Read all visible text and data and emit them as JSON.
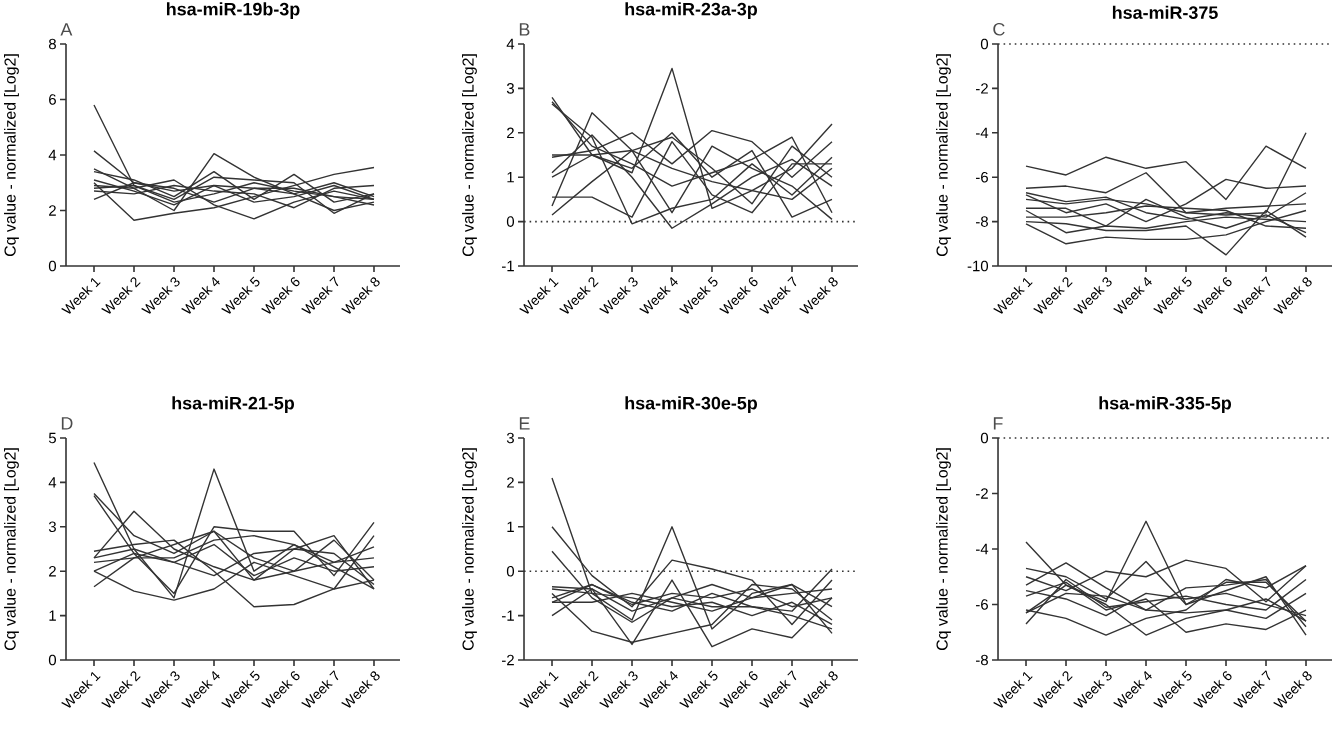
{
  "chart_data": [
    {
      "type": "line",
      "title": "hsa-miR-19b-3p",
      "annotations": [
        "A"
      ],
      "ylabel": "Cq value - normalized [Log2]",
      "categories": [
        "Week 1",
        "Week 2",
        "Week 3",
        "Week 4",
        "Week 5",
        "Week 6",
        "Week 7",
        "Week 8"
      ],
      "ylim": [
        0,
        8
      ],
      "yticks": [
        0,
        2,
        4,
        6,
        8
      ],
      "series": [
        {
          "color": "#333333",
          "values": [
            5.8,
            2.9,
            2.3,
            2.6,
            3.0,
            2.7,
            2.5,
            2.4
          ]
        },
        {
          "color": "#333333",
          "values": [
            4.15,
            3.0,
            2.7,
            2.9,
            2.8,
            2.6,
            3.0,
            2.5
          ]
        },
        {
          "color": "#333333",
          "values": [
            3.5,
            2.8,
            2.0,
            4.05,
            3.2,
            2.6,
            2.0,
            2.3
          ]
        },
        {
          "color": "#333333",
          "values": [
            3.4,
            3.1,
            2.5,
            3.4,
            2.4,
            3.3,
            2.3,
            2.6
          ]
        },
        {
          "color": "#333333",
          "values": [
            3.0,
            1.65,
            1.9,
            2.1,
            2.5,
            2.9,
            3.3,
            3.55
          ]
        },
        {
          "color": "#333333",
          "values": [
            2.9,
            2.8,
            3.1,
            2.2,
            1.7,
            2.3,
            2.7,
            2.4
          ]
        },
        {
          "color": "#333333",
          "values": [
            2.8,
            2.9,
            2.4,
            3.2,
            3.1,
            3.0,
            1.9,
            2.6
          ]
        },
        {
          "color": "#333333",
          "values": [
            2.7,
            2.6,
            2.9,
            2.7,
            2.6,
            2.1,
            2.8,
            2.9
          ]
        },
        {
          "color": "#333333",
          "values": [
            2.4,
            3.0,
            2.8,
            2.3,
            2.8,
            2.8,
            2.5,
            2.2
          ]
        },
        {
          "color": "#333333",
          "values": [
            3.1,
            2.7,
            2.2,
            2.9,
            2.3,
            2.5,
            2.9,
            2.4
          ]
        }
      ]
    },
    {
      "type": "line",
      "title": "hsa-miR-23a-3p",
      "annotations": [
        "B"
      ],
      "ylabel": "Cq value - normalized [Log2]",
      "categories": [
        "Week 1",
        "Week 2",
        "Week 3",
        "Week 4",
        "Week 5",
        "Week 6",
        "Week 7",
        "Week 8"
      ],
      "ylim": [
        -1,
        4
      ],
      "yticks": [
        -1,
        0,
        1,
        2,
        3,
        4
      ],
      "ref_lines": [
        {
          "axis": "y",
          "value": 0,
          "color": "#333333",
          "line_style": "dotted"
        }
      ],
      "series": [
        {
          "color": "#333333",
          "values": [
            2.8,
            1.5,
            1.1,
            3.45,
            0.3,
            0.7,
            1.2,
            2.2
          ]
        },
        {
          "color": "#333333",
          "values": [
            2.7,
            1.7,
            1.3,
            0.8,
            1.1,
            1.4,
            1.9,
            0.2
          ]
        },
        {
          "color": "#333333",
          "values": [
            2.65,
            1.9,
            -0.05,
            0.3,
            0.5,
            1.3,
            0.6,
            1.45
          ]
        },
        {
          "color": "#333333",
          "values": [
            1.45,
            1.6,
            2.0,
            1.3,
            2.05,
            1.8,
            1.0,
            1.8
          ]
        },
        {
          "color": "#333333",
          "values": [
            1.1,
            1.95,
            1.0,
            -0.15,
            0.4,
            1.0,
            1.4,
            0.8
          ]
        },
        {
          "color": "#333333",
          "values": [
            1.0,
            1.5,
            1.2,
            2.0,
            1.0,
            1.6,
            0.1,
            0.5
          ]
        },
        {
          "color": "#333333",
          "values": [
            0.55,
            0.55,
            0.1,
            1.8,
            0.6,
            0.2,
            1.3,
            1.3
          ]
        },
        {
          "color": "#333333",
          "values": [
            0.35,
            2.45,
            1.6,
            0.2,
            1.7,
            1.2,
            0.8,
            0.05
          ]
        },
        {
          "color": "#333333",
          "values": [
            0.15,
            0.9,
            1.6,
            1.9,
            1.2,
            0.4,
            1.7,
            1.0
          ]
        },
        {
          "color": "#333333",
          "values": [
            1.5,
            1.5,
            1.6,
            1.2,
            0.9,
            0.7,
            0.5,
            1.2
          ]
        }
      ]
    },
    {
      "type": "line",
      "title": "hsa-miR-375",
      "annotations": [
        "C"
      ],
      "ylabel": "Cq value - normalized [Log2]",
      "categories": [
        "Week 1",
        "Week 2",
        "Week 3",
        "Week 4",
        "Week 5",
        "Week 6",
        "Week 7",
        "Week 8"
      ],
      "ylim": [
        -10,
        0
      ],
      "yticks": [
        -10,
        -8,
        -6,
        -4,
        -2,
        0
      ],
      "ref_lines": [
        {
          "axis": "y",
          "value": 0,
          "color": "#333333",
          "line_style": "dotted"
        }
      ],
      "series": [
        {
          "color": "#333333",
          "values": [
            -5.5,
            -5.9,
            -5.1,
            -5.6,
            -5.3,
            -7.0,
            -4.6,
            -5.6
          ]
        },
        {
          "color": "#333333",
          "values": [
            -6.5,
            -6.4,
            -6.7,
            -5.8,
            -7.6,
            -7.7,
            -7.6,
            -4.0
          ]
        },
        {
          "color": "#333333",
          "values": [
            -6.8,
            -7.6,
            -7.2,
            -8.0,
            -7.2,
            -6.1,
            -6.5,
            -6.4
          ]
        },
        {
          "color": "#333333",
          "values": [
            -7.0,
            -7.2,
            -7.0,
            -7.2,
            -7.6,
            -7.4,
            -7.3,
            -7.2
          ]
        },
        {
          "color": "#333333",
          "values": [
            -7.4,
            -7.4,
            -8.2,
            -7.0,
            -7.8,
            -8.3,
            -7.7,
            -8.5
          ]
        },
        {
          "color": "#333333",
          "values": [
            -7.5,
            -8.5,
            -8.2,
            -8.3,
            -8.0,
            -7.8,
            -7.9,
            -8.0
          ]
        },
        {
          "color": "#333333",
          "values": [
            -8.0,
            -8.1,
            -8.4,
            -8.4,
            -8.2,
            -9.5,
            -7.5,
            -8.7
          ]
        },
        {
          "color": "#333333",
          "values": [
            -8.1,
            -9.0,
            -8.7,
            -8.8,
            -8.8,
            -8.6,
            -8.0,
            -7.5
          ]
        },
        {
          "color": "#333333",
          "values": [
            -6.7,
            -7.1,
            -6.9,
            -7.6,
            -7.9,
            -7.6,
            -7.8,
            -6.7
          ]
        },
        {
          "color": "#333333",
          "values": [
            -7.8,
            -7.8,
            -7.6,
            -7.3,
            -7.4,
            -7.5,
            -8.2,
            -8.3
          ]
        }
      ]
    },
    {
      "type": "line",
      "title": "hsa-miR-21-5p",
      "annotations": [
        "D"
      ],
      "ylabel": "Cq value - normalized [Log2]",
      "categories": [
        "Week 1",
        "Week 2",
        "Week 3",
        "Week 4",
        "Week 5",
        "Week 6",
        "Week 7",
        "Week 8"
      ],
      "ylim": [
        0,
        5
      ],
      "yticks": [
        0,
        1,
        2,
        3,
        4,
        5
      ],
      "series": [
        {
          "color": "#333333",
          "values": [
            4.45,
            2.5,
            1.4,
            4.3,
            2.0,
            2.6,
            2.1,
            1.6
          ]
        },
        {
          "color": "#333333",
          "values": [
            3.75,
            2.8,
            2.4,
            2.9,
            2.3,
            2.0,
            2.7,
            1.8
          ]
        },
        {
          "color": "#333333",
          "values": [
            3.7,
            2.4,
            1.5,
            3.0,
            2.9,
            2.9,
            1.9,
            3.1
          ]
        },
        {
          "color": "#333333",
          "values": [
            2.45,
            2.6,
            2.7,
            2.0,
            1.2,
            1.25,
            1.6,
            2.8
          ]
        },
        {
          "color": "#333333",
          "values": [
            2.3,
            3.35,
            2.5,
            2.1,
            1.8,
            2.5,
            2.8,
            1.6
          ]
        },
        {
          "color": "#333333",
          "values": [
            2.2,
            2.3,
            2.3,
            2.7,
            2.8,
            2.6,
            2.2,
            2.55
          ]
        },
        {
          "color": "#333333",
          "values": [
            2.0,
            1.55,
            1.35,
            1.6,
            2.2,
            1.9,
            1.6,
            1.8
          ]
        },
        {
          "color": "#333333",
          "values": [
            1.65,
            2.3,
            2.6,
            2.9,
            1.8,
            2.0,
            2.2,
            2.3
          ]
        },
        {
          "color": "#333333",
          "values": [
            2.0,
            2.4,
            2.2,
            1.9,
            2.4,
            2.5,
            2.4,
            1.7
          ]
        },
        {
          "color": "#333333",
          "values": [
            2.3,
            2.5,
            2.2,
            2.6,
            1.9,
            2.3,
            2.0,
            2.1
          ]
        }
      ]
    },
    {
      "type": "line",
      "title": "hsa-miR-30e-5p",
      "annotations": [
        "E"
      ],
      "ylabel": "Cq value - normalized [Log2]",
      "categories": [
        "Week 1",
        "Week 2",
        "Week 3",
        "Week 4",
        "Week 5",
        "Week 6",
        "Week 7",
        "Week 8"
      ],
      "ylim": [
        -2,
        3
      ],
      "yticks": [
        -2,
        -1,
        0,
        1,
        2,
        3
      ],
      "ref_lines": [
        {
          "axis": "y",
          "value": 0,
          "color": "#333333",
          "line_style": "dotted"
        }
      ],
      "series": [
        {
          "color": "#333333",
          "values": [
            2.1,
            -0.5,
            -1.1,
            1.0,
            -1.3,
            -0.5,
            -0.3,
            -1.4
          ]
        },
        {
          "color": "#333333",
          "values": [
            1.0,
            -0.1,
            -0.8,
            0.25,
            0.05,
            -0.2,
            -1.2,
            -0.2
          ]
        },
        {
          "color": "#333333",
          "values": [
            0.45,
            -0.6,
            -1.15,
            -0.6,
            -0.8,
            -0.8,
            -0.9,
            0.05
          ]
        },
        {
          "color": "#333333",
          "values": [
            -0.35,
            -0.4,
            -1.65,
            -0.2,
            -1.7,
            -1.3,
            -1.5,
            -0.6
          ]
        },
        {
          "color": "#333333",
          "values": [
            -0.5,
            -1.35,
            -1.6,
            -1.4,
            -1.2,
            -0.3,
            -0.4,
            -1.1
          ]
        },
        {
          "color": "#333333",
          "values": [
            -0.6,
            -0.3,
            -0.7,
            -0.9,
            -0.5,
            -0.8,
            -1.0,
            -1.3
          ]
        },
        {
          "color": "#333333",
          "values": [
            -0.7,
            -0.7,
            -0.5,
            -0.7,
            -0.9,
            -0.6,
            -0.3,
            -0.8
          ]
        },
        {
          "color": "#333333",
          "values": [
            -1.0,
            -0.4,
            -0.9,
            -0.6,
            -0.3,
            -0.6,
            -0.5,
            -0.4
          ]
        },
        {
          "color": "#333333",
          "values": [
            -0.4,
            -0.5,
            -0.6,
            -0.8,
            -0.7,
            -1.0,
            -0.7,
            -1.2
          ]
        },
        {
          "color": "#333333",
          "values": [
            -0.7,
            -0.3,
            -0.75,
            -0.5,
            -0.6,
            -0.4,
            -0.8,
            -0.6
          ]
        }
      ]
    },
    {
      "type": "line",
      "title": "hsa-miR-335-5p",
      "annotations": [
        "F"
      ],
      "ylabel": "Cq value - normalized [Log2]",
      "categories": [
        "Week 1",
        "Week 2",
        "Week 3",
        "Week 4",
        "Week 5",
        "Week 6",
        "Week 7",
        "Week 8"
      ],
      "ylim": [
        -8,
        0
      ],
      "yticks": [
        -8,
        -6,
        -4,
        -2,
        0
      ],
      "ref_lines": [
        {
          "axis": "y",
          "value": 0,
          "color": "#333333",
          "line_style": "dotted"
        }
      ],
      "series": [
        {
          "color": "#333333",
          "values": [
            -3.75,
            -5.3,
            -5.9,
            -3.0,
            -6.0,
            -5.5,
            -5.0,
            -7.1
          ]
        },
        {
          "color": "#333333",
          "values": [
            -4.7,
            -5.0,
            -5.8,
            -4.45,
            -6.0,
            -5.2,
            -5.2,
            -6.6
          ]
        },
        {
          "color": "#333333",
          "values": [
            -5.0,
            -5.5,
            -4.8,
            -5.0,
            -4.4,
            -4.7,
            -5.9,
            -4.6
          ]
        },
        {
          "color": "#333333",
          "values": [
            -5.3,
            -4.5,
            -5.4,
            -6.2,
            -5.4,
            -5.3,
            -5.1,
            -6.8
          ]
        },
        {
          "color": "#333333",
          "values": [
            -5.7,
            -5.2,
            -6.2,
            -5.8,
            -7.0,
            -6.7,
            -6.9,
            -6.2
          ]
        },
        {
          "color": "#333333",
          "values": [
            -6.2,
            -6.5,
            -7.1,
            -6.5,
            -6.2,
            -5.1,
            -5.4,
            -4.6
          ]
        },
        {
          "color": "#333333",
          "values": [
            -6.3,
            -5.3,
            -6.0,
            -7.1,
            -6.5,
            -6.2,
            -6.5,
            -5.6
          ]
        },
        {
          "color": "#333333",
          "values": [
            -6.7,
            -5.1,
            -6.1,
            -5.9,
            -5.7,
            -6.0,
            -6.2,
            -5.1
          ]
        },
        {
          "color": "#333333",
          "values": [
            -6.3,
            -5.6,
            -5.7,
            -6.2,
            -6.3,
            -6.2,
            -5.8,
            -6.6
          ]
        },
        {
          "color": "#333333",
          "values": [
            -5.5,
            -5.8,
            -6.4,
            -5.6,
            -5.8,
            -5.6,
            -6.0,
            -6.4
          ]
        }
      ]
    }
  ]
}
